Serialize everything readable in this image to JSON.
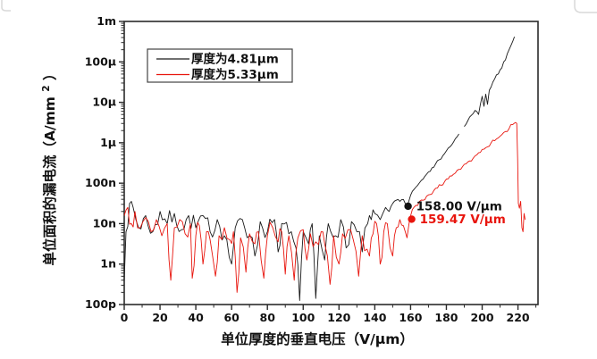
{
  "chart_data": {
    "type": "line",
    "title": "",
    "xlabel": "单位厚度的垂直电压（V/μm）",
    "ylabel_main": "单位面积的漏电流（A/mm",
    "ylabel_sup": "2",
    "ylabel_close": "）",
    "x_major_ticks": [
      0,
      20,
      40,
      60,
      80,
      100,
      120,
      140,
      160,
      180,
      200,
      220
    ],
    "x_minor_step": 10,
    "xlim": [
      0,
      231.2
    ],
    "y_tick_labels": [
      "1m",
      "100μ",
      "10μ",
      "1μ",
      "100n",
      "10n",
      "1n",
      "100p"
    ],
    "y_tick_exponents": [
      -3,
      -4,
      -5,
      -6,
      -7,
      -8,
      -9,
      -10
    ],
    "ylim_exponents": [
      -10,
      -3
    ],
    "y_scale": "log10",
    "grid": false,
    "legend_position": "top-left-inside",
    "colors": {
      "series_black": "#1a1a1a",
      "series_red": "#e8150d",
      "axis": "#2b2b2b",
      "frame_fragment": "#d9d9d9"
    },
    "series": [
      {
        "name": "厚度为4.81μm",
        "color": "#1a1a1a",
        "seed": 7,
        "noise_amp": 0.25,
        "rise_amp": 0.035,
        "jitter_until": 139,
        "step": 1.3,
        "gaps": [
          [
            187.4,
            189.2
          ]
        ],
        "anchors_log10": [
          [
            0,
            -9.4
          ],
          [
            1,
            -8.2
          ],
          [
            3,
            -7.5
          ],
          [
            5,
            -7.6
          ],
          [
            8,
            -8.1
          ],
          [
            12,
            -7.8
          ],
          [
            16,
            -8.2
          ],
          [
            20,
            -7.7
          ],
          [
            24,
            -8.0
          ],
          [
            28,
            -7.75
          ],
          [
            32,
            -8.15
          ],
          [
            36,
            -7.8
          ],
          [
            40,
            -8.1
          ],
          [
            44,
            -7.8
          ],
          [
            48,
            -8.2
          ],
          [
            52,
            -7.9
          ],
          [
            56,
            -8.3
          ],
          [
            60,
            -9.0
          ],
          [
            62,
            -8.1
          ],
          [
            66,
            -7.9
          ],
          [
            70,
            -8.3
          ],
          [
            73,
            -8.8
          ],
          [
            76,
            -7.95
          ],
          [
            80,
            -8.2
          ],
          [
            84,
            -7.9
          ],
          [
            86,
            -8.7
          ],
          [
            88,
            -8.0
          ],
          [
            92,
            -8.25
          ],
          [
            96,
            -8.6
          ],
          [
            98,
            -9.9
          ],
          [
            100,
            -8.2
          ],
          [
            103,
            -8.5
          ],
          [
            105,
            -8.0
          ],
          [
            107,
            -9.85
          ],
          [
            109,
            -8.3
          ],
          [
            112,
            -8.9
          ],
          [
            114,
            -8.0
          ],
          [
            118,
            -8.3
          ],
          [
            121,
            -7.9
          ],
          [
            124,
            -8.6
          ],
          [
            127,
            -7.95
          ],
          [
            130,
            -8.2
          ],
          [
            133,
            -8.7
          ],
          [
            136,
            -8.0
          ],
          [
            138,
            -7.9
          ],
          [
            140,
            -7.75
          ],
          [
            143,
            -7.9
          ],
          [
            146,
            -7.6
          ],
          [
            148,
            -7.7
          ],
          [
            150,
            -7.5
          ],
          [
            152,
            -7.42
          ],
          [
            154,
            -7.45
          ],
          [
            156,
            -7.4
          ],
          [
            157,
            -7.5
          ],
          [
            158,
            -7.57
          ],
          [
            159,
            -7.45
          ],
          [
            160,
            -7.3
          ],
          [
            162,
            -7.15
          ],
          [
            164,
            -7.05
          ],
          [
            166,
            -6.93
          ],
          [
            168,
            -6.83
          ],
          [
            170,
            -6.72
          ],
          [
            172,
            -6.62
          ],
          [
            174,
            -6.52
          ],
          [
            176,
            -6.42
          ],
          [
            178,
            -6.32
          ],
          [
            180,
            -6.2
          ],
          [
            182,
            -6.1
          ],
          [
            184,
            -5.98
          ],
          [
            186,
            -5.85
          ],
          [
            188,
            -5.72
          ],
          [
            190,
            -5.6
          ],
          [
            192,
            -5.45
          ],
          [
            194,
            -5.32
          ],
          [
            196,
            -5.2
          ],
          [
            198,
            -5.3
          ],
          [
            199,
            -5.05
          ],
          [
            200,
            -4.85
          ],
          [
            201,
            -5.1
          ],
          [
            202,
            -4.8
          ],
          [
            203,
            -5.05
          ],
          [
            204,
            -4.7
          ],
          [
            205,
            -4.62
          ],
          [
            206,
            -4.5
          ],
          [
            207,
            -4.42
          ],
          [
            208,
            -4.32
          ],
          [
            209,
            -4.3
          ],
          [
            210,
            -4.2
          ],
          [
            211,
            -4.15
          ],
          [
            212,
            -4.0
          ],
          [
            213,
            -3.95
          ],
          [
            214,
            -3.8
          ],
          [
            215,
            -3.7
          ],
          [
            216,
            -3.6
          ],
          [
            217,
            -3.5
          ],
          [
            218,
            -3.38
          ]
        ]
      },
      {
        "name": "厚度为5.33μm",
        "color": "#e8150d",
        "seed": 13,
        "noise_amp": 0.25,
        "rise_amp": 0.05,
        "jitter_until": 157,
        "step": 1.3,
        "gaps": [],
        "anchors_log10": [
          [
            0,
            -7.8
          ],
          [
            2,
            -7.6
          ],
          [
            4,
            -8.0
          ],
          [
            6,
            -7.7
          ],
          [
            9,
            -8.1
          ],
          [
            12,
            -7.85
          ],
          [
            15,
            -8.2
          ],
          [
            18,
            -7.9
          ],
          [
            21,
            -8.3
          ],
          [
            24,
            -8.0
          ],
          [
            26,
            -9.4
          ],
          [
            28,
            -8.1
          ],
          [
            31,
            -7.9
          ],
          [
            34,
            -8.25
          ],
          [
            37,
            -8.0
          ],
          [
            38,
            -9.35
          ],
          [
            40,
            -8.3
          ],
          [
            42,
            -8.05
          ],
          [
            44,
            -9.0
          ],
          [
            46,
            -8.2
          ],
          [
            48,
            -8.4
          ],
          [
            51,
            -9.3
          ],
          [
            53,
            -8.3
          ],
          [
            56,
            -8.1
          ],
          [
            59,
            -8.4
          ],
          [
            61,
            -8.2
          ],
          [
            63,
            -9.7
          ],
          [
            65,
            -8.35
          ],
          [
            68,
            -9.2
          ],
          [
            70,
            -8.25
          ],
          [
            73,
            -8.5
          ],
          [
            75,
            -8.2
          ],
          [
            78,
            -9.35
          ],
          [
            80,
            -8.3
          ],
          [
            83,
            -8.1
          ],
          [
            86,
            -8.45
          ],
          [
            88,
            -8.2
          ],
          [
            90,
            -9.25
          ],
          [
            92,
            -8.3
          ],
          [
            95,
            -9.4
          ],
          [
            97,
            -8.35
          ],
          [
            100,
            -8.15
          ],
          [
            102,
            -8.9
          ],
          [
            104,
            -8.25
          ],
          [
            107,
            -8.45
          ],
          [
            110,
            -8.2
          ],
          [
            112,
            -8.5
          ],
          [
            115,
            -9.5
          ],
          [
            117,
            -8.3
          ],
          [
            120,
            -9.0
          ],
          [
            122,
            -8.25
          ],
          [
            125,
            -8.15
          ],
          [
            128,
            -8.4
          ],
          [
            131,
            -9.3
          ],
          [
            133,
            -8.3
          ],
          [
            137,
            -8.8
          ],
          [
            139,
            -8.25
          ],
          [
            141,
            -8.0
          ],
          [
            143,
            -9.0
          ],
          [
            145,
            -8.2
          ],
          [
            147,
            -8.0
          ],
          [
            150,
            -8.8
          ],
          [
            152,
            -8.1
          ],
          [
            154,
            -7.9
          ],
          [
            156,
            -8.05
          ],
          [
            158,
            -8.35
          ],
          [
            159.5,
            -7.89
          ],
          [
            161,
            -7.65
          ],
          [
            163,
            -7.55
          ],
          [
            165,
            -7.45
          ],
          [
            167,
            -7.42
          ],
          [
            169,
            -7.32
          ],
          [
            171,
            -7.28
          ],
          [
            173,
            -7.18
          ],
          [
            175,
            -7.12
          ],
          [
            177,
            -7.05
          ],
          [
            179,
            -6.96
          ],
          [
            181,
            -6.89
          ],
          [
            183,
            -6.82
          ],
          [
            185,
            -6.75
          ],
          [
            187,
            -6.66
          ],
          [
            189,
            -6.59
          ],
          [
            191,
            -6.52
          ],
          [
            193,
            -6.45
          ],
          [
            195,
            -6.38
          ],
          [
            197,
            -6.3
          ],
          [
            199,
            -6.24
          ],
          [
            201,
            -6.16
          ],
          [
            203,
            -6.1
          ],
          [
            205,
            -6.0
          ],
          [
            207,
            -5.95
          ],
          [
            209,
            -5.88
          ],
          [
            211,
            -5.8
          ],
          [
            213,
            -5.72
          ],
          [
            215,
            -5.65
          ],
          [
            217,
            -5.55
          ],
          [
            218.5,
            -5.5
          ],
          [
            219.3,
            -5.52
          ],
          [
            219.8,
            -6.4
          ],
          [
            220.2,
            -7.5
          ],
          [
            220.8,
            -7.62
          ],
          [
            221.5,
            -7.45
          ],
          [
            222.2,
            -8.1
          ],
          [
            222.8,
            -8.2
          ],
          [
            223.4,
            -7.75
          ],
          [
            224,
            -7.9
          ]
        ]
      }
    ],
    "annotations": [
      {
        "text": "158.00 V/μm",
        "color": "#111111",
        "marker_x": 158.6,
        "marker_log10": -7.57
      },
      {
        "text": "159.47 V/μm",
        "color": "#e8150d",
        "marker_x": 160.6,
        "marker_log10": -7.89
      }
    ],
    "legend": [
      "厚度为4.81μm",
      "厚度为5.33μm"
    ]
  }
}
